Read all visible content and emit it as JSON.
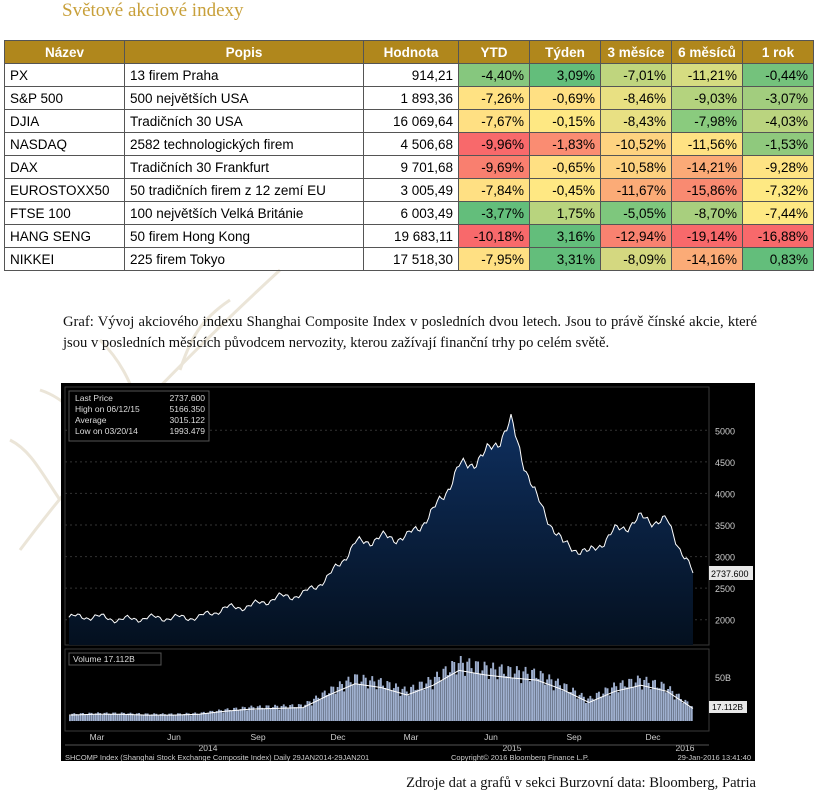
{
  "page_title": "Světové akciové indexy",
  "table": {
    "headers": [
      "Název",
      "Popis",
      "Hodnota",
      "YTD",
      "Týden",
      "3 měsíce",
      "6 měsíců",
      "1 rok"
    ],
    "rows": [
      {
        "name": "PX",
        "desc": "13 firem Praha",
        "value": "914,21",
        "pcts": [
          "-4,40%",
          "3,09%",
          "-7,01%",
          "-11,21%",
          "-0,44%"
        ],
        "colors": [
          "#86c77e",
          "#63be7b",
          "#bfd57e",
          "#d6dc81",
          "#74c27c"
        ]
      },
      {
        "name": "S&P 500",
        "desc": "500 největších USA",
        "value": "1 893,36",
        "pcts": [
          "-7,26%",
          "-0,69%",
          "-8,46%",
          "-9,03%",
          "-3,07%"
        ],
        "colors": [
          "#ffe283",
          "#ffe083",
          "#e8e082",
          "#b4d37e",
          "#a2cd7e"
        ]
      },
      {
        "name": "DJIA",
        "desc": "Tradičních 30 USA",
        "value": "16 069,64",
        "pcts": [
          "-7,67%",
          "-0,15%",
          "-8,43%",
          "-7,98%",
          "-4,03%"
        ],
        "colors": [
          "#ffe083",
          "#fee883",
          "#e8e083",
          "#8acb7e",
          "#bad47f"
        ]
      },
      {
        "name": "NASDAQ",
        "desc": "2582 technologických firem",
        "value": "4 506,68",
        "pcts": [
          "-9,96%",
          "-1,83%",
          "-10,52%",
          "-11,56%",
          "-1,53%"
        ],
        "colors": [
          "#f8696b",
          "#fa8c72",
          "#fed380",
          "#ffe283",
          "#8fc97d"
        ]
      },
      {
        "name": "DAX",
        "desc": "Tradičních 30 Frankfurt",
        "value": "9 701,68",
        "pcts": [
          "-9,69%",
          "-0,65%",
          "-10,58%",
          "-14,21%",
          "-9,28%"
        ],
        "colors": [
          "#f97f6f",
          "#ffe083",
          "#fdd17f",
          "#fbaa77",
          "#fee383"
        ]
      },
      {
        "name": "EUROSTOXX50",
        "desc": "50 tradičních firem z 12 zemí EU",
        "value": "3 005,49",
        "pcts": [
          "-7,84%",
          "-0,45%",
          "-11,67%",
          "-15,86%",
          "-7,32%"
        ],
        "colors": [
          "#ffe083",
          "#ffe883",
          "#fbab77",
          "#f98a71",
          "#fee983"
        ]
      },
      {
        "name": "FTSE 100",
        "desc": "100 největších Velká Británie",
        "value": "6 003,49",
        "pcts": [
          "-3,77%",
          "1,75%",
          "-5,05%",
          "-8,70%",
          "-7,44%"
        ],
        "colors": [
          "#63be7b",
          "#b8d47e",
          "#7ec77d",
          "#a8cf7e",
          "#fee983"
        ]
      },
      {
        "name": "HANG SENG",
        "desc": "50 firem Hong Kong",
        "value": "19 683,11",
        "pcts": [
          "-10,18%",
          "3,16%",
          "-12,94%",
          "-19,14%",
          "-16,88%"
        ],
        "colors": [
          "#f8696b",
          "#63be7b",
          "#f98270",
          "#f8696b",
          "#f8696b"
        ]
      },
      {
        "name": "NIKKEI",
        "desc": "225 firem Tokyo",
        "value": "17 518,30",
        "pcts": [
          "-7,95%",
          "3,31%",
          "-8,09%",
          "-14,16%",
          "0,83%"
        ],
        "colors": [
          "#ffe083",
          "#63be7b",
          "#d4d880",
          "#fbab77",
          "#63be7b"
        ]
      }
    ]
  },
  "caption": "Graf: Vývoj akciového indexu Shanghai Composite Index v posledních dvou letech. Jsou to právě čínské akcie, které jsou v posledních měsících původcem nervozity, kterou zažívají finanční trhy po celém světě.",
  "chart": {
    "legend": [
      {
        "label": "Last Price",
        "value": "2737.600"
      },
      {
        "label": "High on 06/12/15",
        "value": "5166.350"
      },
      {
        "label": "Average",
        "value": "3015.122"
      },
      {
        "label": "Low on 03/20/14",
        "value": "1993.479"
      }
    ],
    "last_label": "2737.600",
    "volume_legend": "Volume 17.112B",
    "volume_last": "17.112B",
    "volume_tick": "50B",
    "footer_left": "SHCOMP Index (Shanghai Stock Exchange Composite Index)  Daily 29JAN2014-29JAN201",
    "footer_mid": "Copyright© 2016 Bloomberg Finance L.P.",
    "footer_right": "29-Jan-2016 13:41:40",
    "colors": {
      "bg": "#000000",
      "area_top": "#0d2a52",
      "area_bottom": "#051226",
      "line": "#ffffff",
      "volume": "#9fb0cf",
      "avg": "#ffffff"
    }
  },
  "chart_data": {
    "type": "area",
    "title": "",
    "xlabel": "",
    "ylabel": "",
    "ylim": [
      1600,
      5400
    ],
    "yticks": [
      "2000",
      "2500",
      "3000",
      "3500",
      "4000",
      "4500",
      "5000"
    ],
    "xticks": [
      "Mar",
      "Jun",
      "Sep",
      "Dec",
      "Mar",
      "Jun",
      "Sep",
      "Dec"
    ],
    "years": [
      "2014",
      "2015",
      "2016"
    ],
    "x": [
      "2014-01",
      "2014-02",
      "2014-03",
      "2014-04",
      "2014-05",
      "2014-06",
      "2014-07",
      "2014-08",
      "2014-09",
      "2014-10",
      "2014-11",
      "2014-12",
      "2015-01",
      "2015-02",
      "2015-03",
      "2015-04",
      "2015-05",
      "2015-06",
      "2015-07",
      "2015-08",
      "2015-09",
      "2015-10",
      "2015-11",
      "2015-12",
      "2016-01"
    ],
    "series": [
      {
        "values": [
          2040,
          2050,
          2000,
          2030,
          2030,
          2040,
          2180,
          2220,
          2350,
          2400,
          2680,
          3200,
          3300,
          3300,
          3700,
          4400,
          4600,
          5100,
          3900,
          3200,
          3050,
          3400,
          3600,
          3550,
          2740
        ]
      }
    ],
    "volume": {
      "ylim": [
        0,
        80
      ],
      "values": [
        8,
        9,
        9,
        8,
        8,
        9,
        13,
        16,
        17,
        18,
        35,
        50,
        45,
        35,
        48,
        68,
        62,
        58,
        55,
        42,
        25,
        40,
        48,
        40,
        17
      ]
    }
  },
  "source": "Zdroje dat a grafů v sekci Burzovní data: Bloomberg, Patria"
}
